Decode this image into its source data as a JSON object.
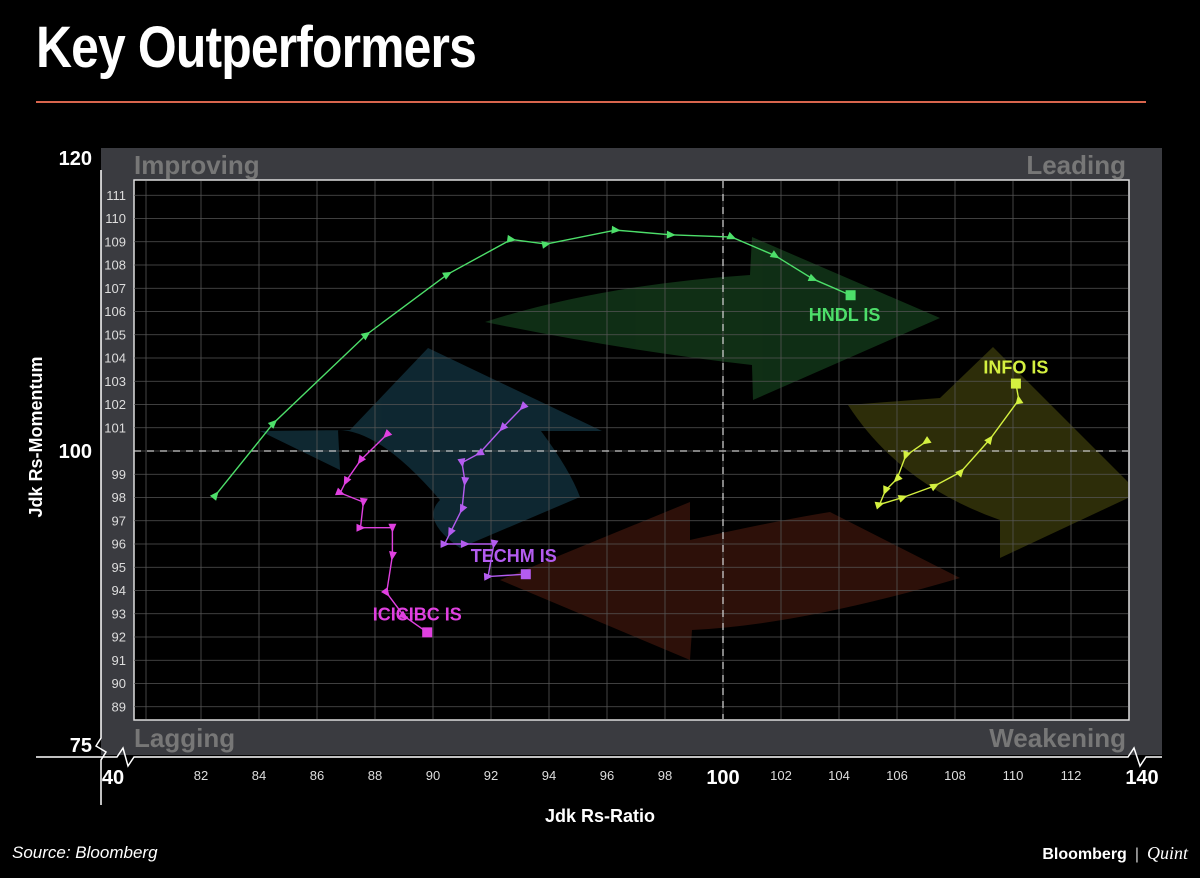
{
  "title": "Key Outperformers",
  "source": "Source: Bloomberg",
  "brand": {
    "name": "Bloomberg",
    "separator": "|",
    "partner": "Quint"
  },
  "colors": {
    "rule": "#d9654d",
    "background": "#000000",
    "panel": "#3a3b40"
  },
  "chart_data": {
    "type": "scatter",
    "xlabel": "Jdk Rs-Ratio",
    "ylabel": "Jdk Rs-Momentum",
    "xlim": [
      40,
      140
    ],
    "ylim": [
      75,
      120
    ],
    "x_break_ticks": [
      40,
      140
    ],
    "y_break_ticks": [
      75,
      120
    ],
    "inner_xlim": [
      80.5,
      114.5
    ],
    "inner_ylim": [
      88.2,
      111.8
    ],
    "xticks": [
      82,
      84,
      86,
      88,
      90,
      92,
      94,
      96,
      98,
      100,
      102,
      104,
      106,
      108,
      110,
      112
    ],
    "yticks": [
      89,
      90,
      91,
      92,
      93,
      94,
      95,
      96,
      97,
      98,
      99,
      100,
      101,
      102,
      103,
      104,
      105,
      106,
      107,
      108,
      109,
      110,
      111
    ],
    "reference": {
      "x": 100,
      "y": 100
    },
    "quadrants": {
      "top_left": "Improving",
      "top_right": "Leading",
      "bottom_left": "Lagging",
      "bottom_right": "Weakening"
    },
    "grid": true,
    "series": [
      {
        "name": "HNDL IS",
        "color": "#4ddf6a",
        "x": [
          82.5,
          84.5,
          87.7,
          90.5,
          92.7,
          93.9,
          96.3,
          98.2,
          100.3,
          101.8,
          103.1,
          104.4
        ],
        "y": [
          98.1,
          101.2,
          105.0,
          107.6,
          109.1,
          108.9,
          109.5,
          109.3,
          109.2,
          108.4,
          107.4,
          106.7
        ]
      },
      {
        "name": "TECHM IS",
        "color": "#b45cf0",
        "x": [
          93.1,
          92.4,
          91.6,
          91.0,
          91.1,
          91.0,
          90.6,
          90.4,
          91.1,
          92.1,
          91.9,
          93.2
        ],
        "y": [
          101.9,
          101.0,
          99.9,
          99.5,
          98.7,
          97.5,
          96.5,
          96.0,
          96.0,
          96.0,
          94.6,
          94.7
        ]
      },
      {
        "name": "ICICIBC IS",
        "color": "#e040e0",
        "x": [
          88.4,
          87.5,
          87.0,
          86.8,
          87.6,
          87.5,
          88.6,
          88.6,
          88.4,
          89.0,
          89.8
        ],
        "y": [
          100.7,
          99.6,
          98.7,
          98.2,
          97.8,
          96.7,
          96.7,
          95.5,
          93.9,
          92.9,
          92.2
        ]
      },
      {
        "name": "INFO IS",
        "color": "#d4f040",
        "x": [
          107.0,
          106.3,
          106.0,
          105.6,
          105.4,
          106.2,
          107.3,
          108.2,
          109.2,
          110.2,
          110.1
        ],
        "y": [
          100.4,
          99.8,
          98.8,
          98.3,
          97.7,
          98.0,
          98.5,
          99.1,
          100.5,
          102.2,
          102.9
        ]
      }
    ]
  }
}
